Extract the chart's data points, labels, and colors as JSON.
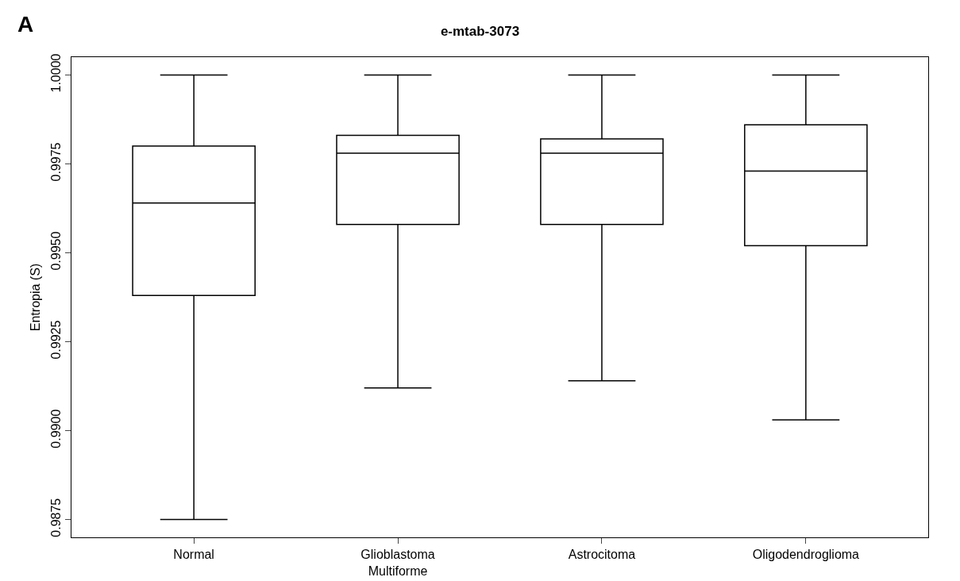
{
  "chart_data": {
    "type": "box",
    "title": "e-mtab-3073",
    "ylabel": "Entropia (S)",
    "annotations": [
      "A"
    ],
    "categories": [
      "Normal",
      "Glioblastoma Multiforme",
      "Astrocitoma",
      "Oligodendroglioma"
    ],
    "boxes": [
      {
        "low": 0.9875,
        "q1": 0.9938,
        "median": 0.9964,
        "q3": 0.998,
        "high": 1.0
      },
      {
        "low": 0.9912,
        "q1": 0.9958,
        "median": 0.9978,
        "q3": 0.9983,
        "high": 1.0
      },
      {
        "low": 0.9914,
        "q1": 0.9958,
        "median": 0.9978,
        "q3": 0.9982,
        "high": 1.0
      },
      {
        "low": 0.9903,
        "q1": 0.9952,
        "median": 0.9973,
        "q3": 0.9986,
        "high": 1.0
      }
    ],
    "color": "#000000",
    "ylim": [
      0.987,
      1.0005
    ],
    "yticks": [
      {
        "value": 0.9875,
        "label": "0.9875"
      },
      {
        "value": 0.99,
        "label": "0.9900"
      },
      {
        "value": 0.9925,
        "label": "0.9925"
      },
      {
        "value": 0.995,
        "label": "0.9950"
      },
      {
        "value": 0.9975,
        "label": "0.9975"
      },
      {
        "value": 1.0,
        "label": "1.0000"
      }
    ],
    "grid": false,
    "legend": false
  }
}
